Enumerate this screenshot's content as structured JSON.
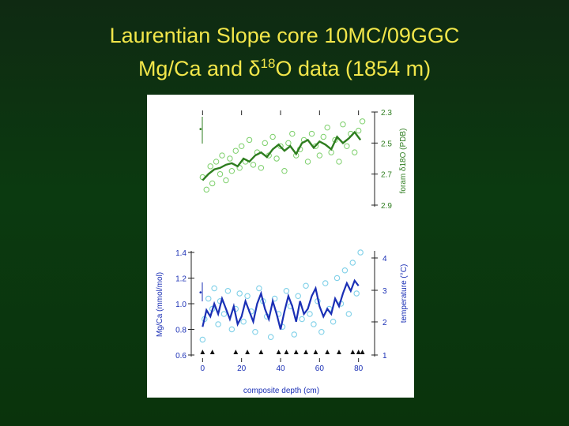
{
  "title": {
    "line1": "Laurentian Slope core 10MC/09GGC",
    "line2_pre": "Mg/Ca and ",
    "line2_delta": "δ",
    "line2_sup": "18",
    "line2_post": "O data (1854 m)"
  },
  "colors": {
    "background": "#0b3a10",
    "title": "#f2e64a",
    "d18o_line": "#2e7d1f",
    "d18o_points": "#7ccf6a",
    "mgca_line": "#1a2fb5",
    "mgca_points": "#7fd0e8",
    "axis_text": "#1a2fb5"
  },
  "chart_data": [
    {
      "type": "line",
      "panel": "top",
      "ylabel": "foram δ18O (PDB)",
      "yaxis_side": "right",
      "y_inverted": true,
      "ylim": [
        2.9,
        2.3
      ],
      "yticks": [
        "2.3",
        "2.5",
        "2.7",
        "2.9"
      ],
      "xlim": [
        -5,
        85
      ],
      "series": [
        {
          "style": "line",
          "x": [
            0,
            3,
            6,
            9,
            12,
            15,
            18,
            21,
            24,
            27,
            30,
            33,
            36,
            39,
            42,
            45,
            48,
            51,
            54,
            57,
            60,
            63,
            66,
            69,
            72,
            75,
            78,
            81
          ],
          "y": [
            2.74,
            2.7,
            2.67,
            2.66,
            2.64,
            2.63,
            2.65,
            2.6,
            2.62,
            2.58,
            2.56,
            2.59,
            2.54,
            2.51,
            2.55,
            2.52,
            2.57,
            2.5,
            2.48,
            2.53,
            2.49,
            2.51,
            2.54,
            2.46,
            2.5,
            2.47,
            2.43,
            2.48
          ]
        },
        {
          "style": "points",
          "x": [
            0,
            2,
            4,
            5,
            7,
            9,
            10,
            12,
            14,
            15,
            17,
            19,
            20,
            22,
            24,
            26,
            28,
            30,
            32,
            34,
            36,
            38,
            40,
            42,
            44,
            46,
            48,
            50,
            52,
            54,
            56,
            58,
            60,
            62,
            64,
            66,
            68,
            70,
            72,
            74,
            76,
            78,
            80,
            82
          ],
          "y": [
            2.72,
            2.8,
            2.65,
            2.76,
            2.62,
            2.7,
            2.58,
            2.74,
            2.6,
            2.68,
            2.55,
            2.66,
            2.52,
            2.62,
            2.48,
            2.64,
            2.56,
            2.66,
            2.5,
            2.58,
            2.46,
            2.6,
            2.52,
            2.68,
            2.5,
            2.44,
            2.58,
            2.54,
            2.48,
            2.62,
            2.44,
            2.52,
            2.58,
            2.46,
            2.4,
            2.56,
            2.48,
            2.62,
            2.38,
            2.52,
            2.44,
            2.56,
            2.42,
            2.36
          ]
        }
      ],
      "error_bar_label": "•"
    },
    {
      "type": "line",
      "panel": "bottom",
      "ylabel": "Mg/Ca (mmol/mol)",
      "ylim": [
        0.6,
        1.4
      ],
      "yticks": [
        "0.6",
        "0.8",
        "1.0",
        "1.2",
        "1.4"
      ],
      "ylabel_right": "temperature (°C)",
      "yticks_right": [
        "1",
        "2",
        "3",
        "4"
      ],
      "xlabel": "composite depth (cm)",
      "xlim": [
        -5,
        85
      ],
      "xticks": [
        "0",
        "20",
        "40",
        "60",
        "80"
      ],
      "series": [
        {
          "style": "line",
          "x": [
            0,
            2,
            4,
            6,
            8,
            10,
            12,
            14,
            16,
            18,
            20,
            22,
            24,
            26,
            28,
            30,
            32,
            34,
            36,
            38,
            40,
            42,
            44,
            46,
            48,
            50,
            52,
            54,
            56,
            58,
            60,
            62,
            64,
            66,
            68,
            70,
            72,
            74,
            76,
            78,
            80
          ],
          "y": [
            0.82,
            0.95,
            0.9,
            1.0,
            0.92,
            1.04,
            0.96,
            0.88,
            0.98,
            0.84,
            0.9,
            1.02,
            0.94,
            0.86,
            1.0,
            1.08,
            0.96,
            0.88,
            1.02,
            0.92,
            0.8,
            0.94,
            1.06,
            0.98,
            0.86,
            1.02,
            0.92,
            0.96,
            1.06,
            1.12,
            0.98,
            0.9,
            0.96,
            0.92,
            1.04,
            0.98,
            1.08,
            1.16,
            1.1,
            1.18,
            1.14
          ]
        },
        {
          "style": "points",
          "x": [
            0,
            1,
            3,
            5,
            6,
            8,
            9,
            11,
            13,
            15,
            17,
            19,
            21,
            23,
            25,
            27,
            29,
            31,
            33,
            35,
            37,
            39,
            41,
            43,
            45,
            47,
            49,
            51,
            53,
            55,
            57,
            59,
            61,
            63,
            65,
            67,
            69,
            71,
            73,
            75,
            77,
            79,
            81
          ],
          "y": [
            0.72,
            0.88,
            1.04,
            0.96,
            1.12,
            0.84,
            1.02,
            0.92,
            1.1,
            0.8,
            0.96,
            1.08,
            0.86,
            1.06,
            0.94,
            0.78,
            1.12,
            1.02,
            0.9,
            0.74,
            1.04,
            0.92,
            0.82,
            1.1,
            0.98,
            0.76,
            1.06,
            0.88,
            1.14,
            0.92,
            0.84,
            1.02,
            0.78,
            1.16,
            0.96,
            0.86,
            1.2,
            1.0,
            1.26,
            0.92,
            1.32,
            1.08,
            1.4
          ]
        }
      ],
      "error_bar_label": "•",
      "markers_label": "▲",
      "markers_x": [
        0,
        5,
        17,
        23,
        30,
        39,
        43,
        48,
        53,
        58,
        64,
        70,
        77,
        80,
        82
      ]
    }
  ]
}
